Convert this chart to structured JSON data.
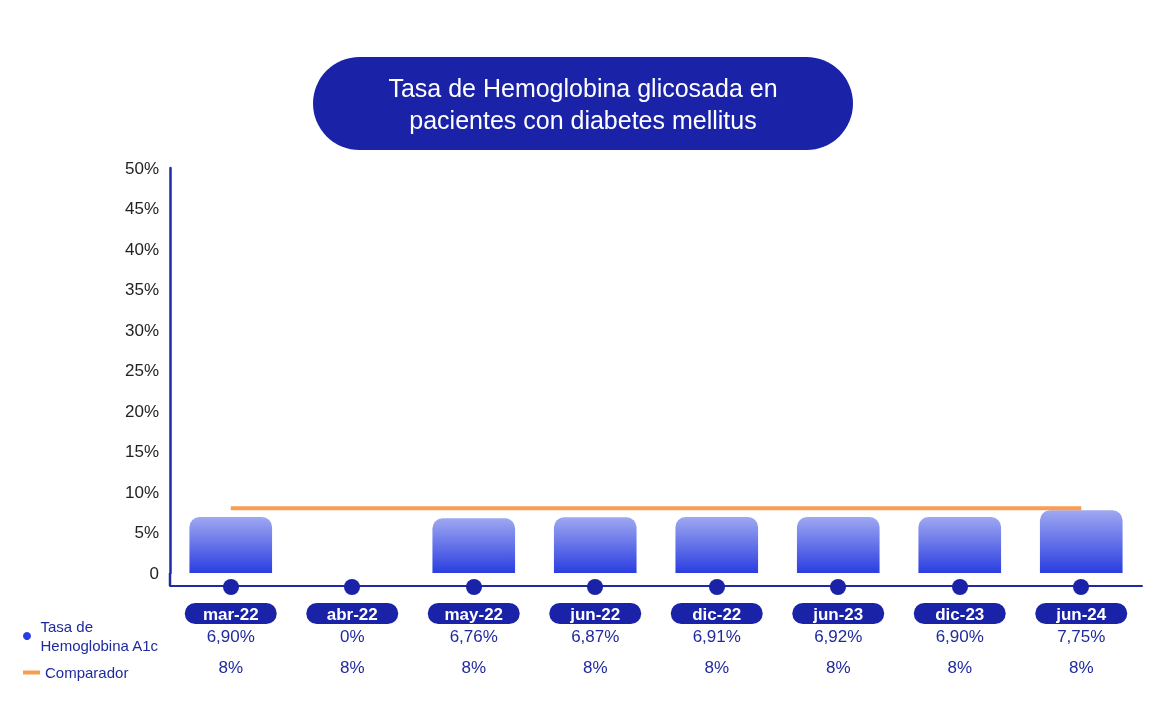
{
  "chart_data": {
    "type": "bar",
    "title": "Tasa de Hemoglobina glicosada en pacientes con diabetes mellitus",
    "categories": [
      "mar-22",
      "abr-22",
      "may-22",
      "jun-22",
      "dic-22",
      "jun-23",
      "dic-23",
      "jun-24"
    ],
    "series": [
      {
        "name": "Tasa de Hemoglobina A1c",
        "color": "#2a3de0",
        "values": [
          6.9,
          0,
          6.76,
          6.87,
          6.91,
          6.92,
          6.9,
          7.75
        ],
        "value_labels": [
          "6,90%",
          "0%",
          "6,76%",
          "6,87%",
          "6,91%",
          "6,92%",
          "6,90%",
          "7,75%"
        ]
      },
      {
        "name": "Comparador",
        "type": "line",
        "color": "#f99d52",
        "values": [
          8,
          8,
          8,
          8,
          8,
          8,
          8,
          8
        ],
        "value_labels": [
          "8%",
          "8%",
          "8%",
          "8%",
          "8%",
          "8%",
          "8%",
          "8%"
        ]
      }
    ],
    "ylim": [
      0,
      50
    ],
    "yticks": [
      0,
      {
        "value": 5,
        "label": "5%"
      },
      {
        "value": 10,
        "label": "10%"
      },
      {
        "value": 15,
        "label": "15%"
      },
      {
        "value": 20,
        "label": "20%"
      },
      {
        "value": 25,
        "label": "25%"
      },
      {
        "value": 30,
        "label": "30%"
      },
      {
        "value": 35,
        "label": "35%"
      },
      {
        "value": 40,
        "label": "40%"
      },
      {
        "value": 45,
        "label": "45%"
      },
      {
        "value": 50,
        "label": "50%"
      }
    ],
    "grid": false,
    "legend": "bottom left",
    "marker": "none"
  }
}
